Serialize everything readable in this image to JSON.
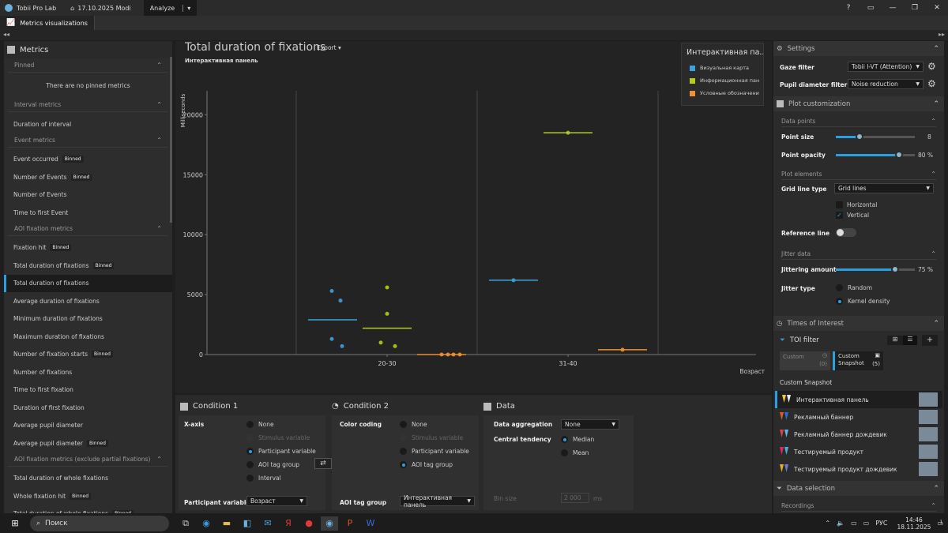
{
  "titlebar": {
    "app_name": "Tobii Pro Lab",
    "project": "17.10.2025 Modi",
    "analyze": "Analyze"
  },
  "toolstrip": {
    "tab": "Metrics visualizations"
  },
  "left": {
    "title": "Metrics",
    "sections": [
      {
        "label": "Pinned",
        "empty": "There are no pinned metrics",
        "items": []
      },
      {
        "label": "Interval metrics",
        "items": [
          {
            "label": "Duration of interval"
          }
        ]
      },
      {
        "label": "Event metrics",
        "items": [
          {
            "label": "Event occurred",
            "badge": "Binned"
          },
          {
            "label": "Number of Events",
            "badge": "Binned"
          },
          {
            "label": "Number of Events"
          },
          {
            "label": "Time to first Event"
          }
        ]
      },
      {
        "label": "AOI fixation metrics",
        "items": [
          {
            "label": "Fixation hit",
            "badge": "Binned"
          },
          {
            "label": "Total duration of fixations",
            "badge": "Binned"
          },
          {
            "label": "Total duration of fixations",
            "selected": true
          },
          {
            "label": "Average duration of fixations"
          },
          {
            "label": "Minimum duration of fixations"
          },
          {
            "label": "Maximum duration of fixations"
          },
          {
            "label": "Number of fixation starts",
            "badge": "Binned"
          },
          {
            "label": "Number of fixations"
          },
          {
            "label": "Time to first fixation"
          },
          {
            "label": "Duration of first fixation"
          },
          {
            "label": "Average pupil diameter"
          },
          {
            "label": "Average pupil diameter",
            "badge": "Binned"
          }
        ]
      },
      {
        "label": "AOI fixation metrics (exclude partial fixations)",
        "items": [
          {
            "label": "Total duration of whole fixations"
          },
          {
            "label": "Whole fixation hit",
            "badge": "Binned"
          },
          {
            "label": "Total duration of whole fixations",
            "badge": "Binned"
          }
        ]
      }
    ]
  },
  "plot": {
    "title": "Total duration of fixations",
    "subtitle": "Интерактивная панель",
    "export": "Export",
    "legend_title": "Интерактивная па...",
    "legend": [
      {
        "label": "Визуальная карта",
        "color": "#3ba3d9"
      },
      {
        "label": "Информационная пан",
        "color": "#b5cc18"
      },
      {
        "label": "Условные обозначени",
        "color": "#f0902f"
      }
    ]
  },
  "chart_data": {
    "type": "scatter",
    "ylabel": "Milliseconds",
    "xlabel": "Возраст",
    "ylim": [
      0,
      22000
    ],
    "yticks": [
      0,
      5000,
      10000,
      15000,
      20000
    ],
    "categories": [
      "20-30",
      "31-40"
    ],
    "grid": "vertical",
    "series": [
      {
        "name": "Визуальная карта",
        "color": "#3ba3d9",
        "median": [
          2900,
          6200
        ],
        "points": [
          [
            0,
            5300
          ],
          [
            0,
            4500
          ],
          [
            0,
            1300
          ],
          [
            0,
            700
          ],
          [
            1,
            6200
          ]
        ]
      },
      {
        "name": "Информационная пан",
        "color": "#b5cc18",
        "median": [
          2200,
          18500
        ],
        "points": [
          [
            0,
            5600
          ],
          [
            0,
            3400
          ],
          [
            0,
            1000
          ],
          [
            0,
            700
          ],
          [
            1,
            18500
          ]
        ]
      },
      {
        "name": "Условные обозначени",
        "color": "#f0902f",
        "median": [
          0,
          400
        ],
        "points": [
          [
            0,
            0
          ],
          [
            0,
            0
          ],
          [
            0,
            0
          ],
          [
            0,
            0
          ],
          [
            1,
            400
          ]
        ]
      }
    ]
  },
  "condition1": {
    "title": "Condition 1",
    "xaxis_label": "X-axis",
    "options": [
      "None",
      "Stimulus variable",
      "Participant variable",
      "AOI tag group",
      "Interval"
    ],
    "selected": "Participant variable",
    "participant_variable_label": "Participant variable",
    "participant_variable_value": "Возраст"
  },
  "condition2": {
    "title": "Condition 2",
    "color_label": "Color coding",
    "options": [
      "None",
      "Stimulus variable",
      "Participant variable",
      "AOI tag group"
    ],
    "selected": "AOI tag group",
    "aoi_group_label": "AOI tag group",
    "aoi_group_value": "Интерактивная панель"
  },
  "data_panel": {
    "title": "Data",
    "aggregation_label": "Data aggregation",
    "aggregation_value": "None",
    "tendency_label": "Central tendency",
    "tendency_options": [
      "Median",
      "Mean"
    ],
    "tendency_selected": "Median",
    "bin_label": "Bin size",
    "bin_value": "2 000",
    "bin_unit": "ms"
  },
  "settings": {
    "title": "Settings",
    "gaze_filter_label": "Gaze filter",
    "gaze_filter_value": "Tobii I-VT (Attention)",
    "pupil_filter_label": "Pupil diameter filter",
    "pupil_filter_value": "Noise reduction"
  },
  "plot_custom": {
    "title": "Plot customization",
    "data_points": "Data points",
    "point_size_label": "Point size",
    "point_size": 8,
    "point_size_frac": 0.3,
    "point_opacity_label": "Point opacity",
    "point_opacity": "80 %",
    "point_opacity_frac": 0.8,
    "plot_elements": "Plot elements",
    "grid_label": "Grid line type",
    "grid_value": "Grid lines",
    "horizontal": "Horizontal",
    "vertical": "Vertical",
    "reference_label": "Reference line",
    "jitter_data": "Jitter data",
    "jitter_amount_label": "Jittering amount",
    "jitter_amount": "75 %",
    "jitter_frac": 0.75,
    "jitter_type_label": "Jitter type",
    "jitter_random": "Random",
    "jitter_kernel": "Kernel density"
  },
  "toi": {
    "title": "Times of Interest",
    "filter": "TOI filter",
    "custom_label": "Custom",
    "custom_count": "(0)",
    "snapshot_label": "Custom Snapshot",
    "snapshot_count": "(5)",
    "group_label": "Custom Snapshot",
    "items": [
      {
        "label": "Интерактивная панель",
        "color1": "#e8c547",
        "color2": "#e8e8e8",
        "selected": true
      },
      {
        "label": "Рекламный баннер",
        "color1": "#e05a2b",
        "color2": "#2a6ad9"
      },
      {
        "label": "Рекламный баннер дождевик",
        "color1": "#d94050",
        "color2": "#6ab0e0"
      },
      {
        "label": "Тестируемый  продукт",
        "color1": "#d92a6a",
        "color2": "#4ab0d9"
      },
      {
        "label": "Тестируемый продукт дождевик",
        "color1": "#e8b020",
        "color2": "#6a7ad9"
      }
    ]
  },
  "data_selection": {
    "title": "Data selection",
    "recordings": "Recordings"
  },
  "taskbar": {
    "search": "Поиск",
    "lang": "РУС",
    "time": "14:46",
    "date": "18.11.2025",
    "notif": "1"
  }
}
